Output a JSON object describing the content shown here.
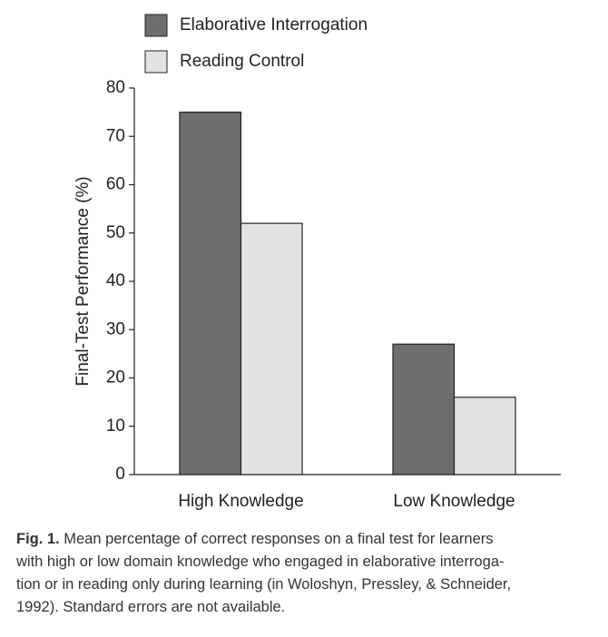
{
  "chart_data": {
    "type": "bar",
    "ylabel": "Final-Test Performance (%)",
    "categories": [
      "High Knowledge",
      "Low Knowledge"
    ],
    "series": [
      {
        "name": "Elaborative Interrogation",
        "color": "#6e6e6e",
        "values": [
          75,
          27
        ]
      },
      {
        "name": "Reading Control",
        "color": "#e2e2e2",
        "values": [
          52,
          16
        ]
      }
    ],
    "ylim": [
      0,
      80
    ],
    "yticks": [
      0,
      10,
      20,
      30,
      40,
      50,
      60,
      70,
      80
    ],
    "grid": false,
    "legend": "top-left"
  },
  "caption": {
    "label": "Fig. 1.",
    "lines": [
      "Mean percentage of correct responses on a final test for learners",
      "with high or low domain knowledge who engaged in elaborative interroga-",
      "tion or in reading only during learning (in Woloshyn, Pressley, & Schneider,",
      "1992). Standard errors are not available."
    ]
  }
}
